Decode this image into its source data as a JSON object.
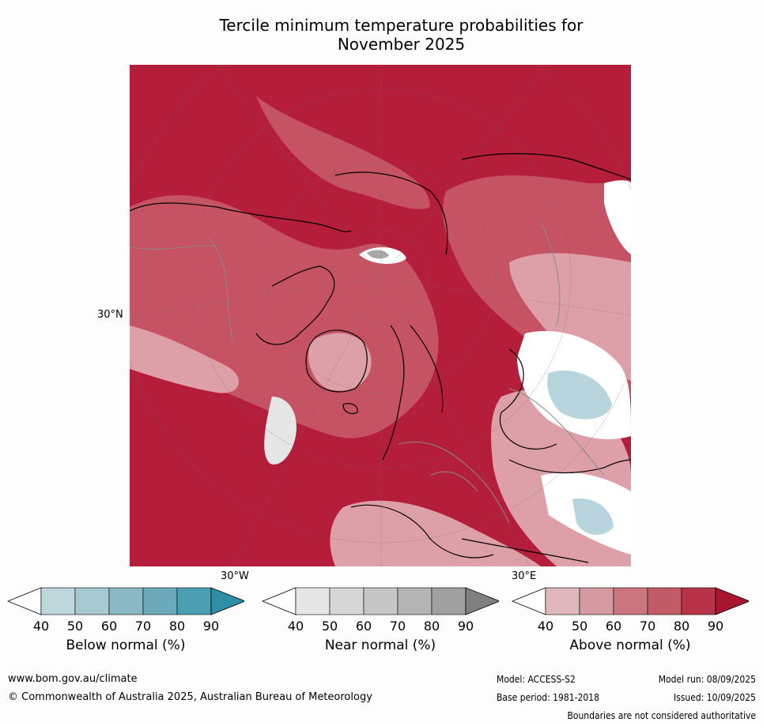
{
  "title_line1": "Tercile minimum temperature probabilities for",
  "title_line2": "November 2025",
  "map": {
    "lat_label": "30°N",
    "lon_label_left": "30°W",
    "lon_label_right": "30°E",
    "colors": {
      "above_dark": "#b41e3a",
      "above_mid": "#c85a6a",
      "above_light": "#dfa0a8",
      "near_light": "#e6e6e6",
      "near_mid": "#a8a8a8",
      "below_light": "#b8d4dc"
    }
  },
  "colorbars": [
    {
      "label": "Below normal (%)",
      "ticks": [
        "40",
        "50",
        "60",
        "70",
        "80",
        "90"
      ],
      "colors": [
        "#ffffff",
        "#bdd7dd",
        "#a6c9d0",
        "#8ab9c4",
        "#6aaabb",
        "#4b9fb2",
        "#2c8ea7"
      ]
    },
    {
      "label": "Near normal (%)",
      "ticks": [
        "40",
        "50",
        "60",
        "70",
        "80",
        "90"
      ],
      "colors": [
        "#ffffff",
        "#e6e6e6",
        "#d6d6d6",
        "#c6c6c6",
        "#b4b4b4",
        "#a0a0a0",
        "#808080"
      ]
    },
    {
      "label": "Above normal (%)",
      "ticks": [
        "40",
        "50",
        "60",
        "70",
        "80",
        "90"
      ],
      "colors": [
        "#ffffff",
        "#e0b8bc",
        "#d59aa1",
        "#cb7580",
        "#c35a68",
        "#b93348",
        "#a8162f"
      ]
    }
  ],
  "footer": {
    "url": "www.bom.gov.au/climate",
    "copyright": "© Commonwealth of Australia 2025, Australian Bureau of Meteorology",
    "model": "Model: ACCESS-S2",
    "base_period": "Base period: 1981-2018",
    "model_run": "Model run: 08/09/2025",
    "issued": "Issued: 10/09/2025",
    "disclaimer": "Boundaries are not considered authoritative"
  }
}
